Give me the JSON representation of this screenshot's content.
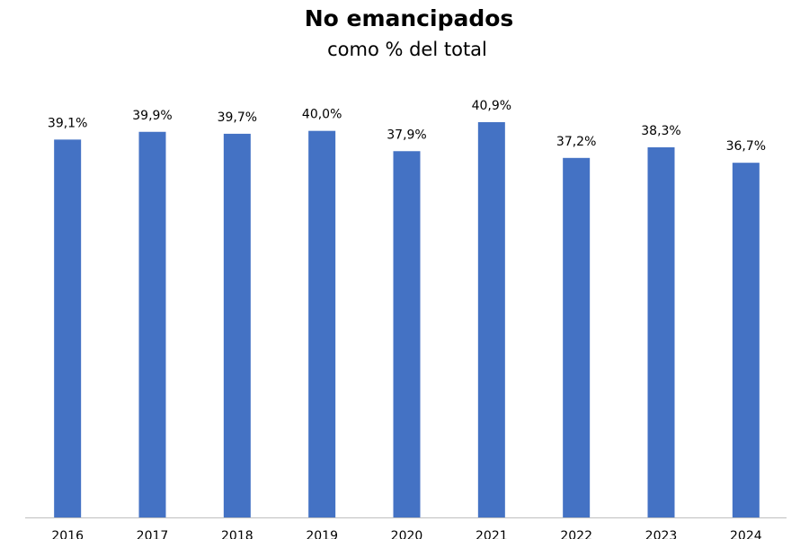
{
  "chart_data": {
    "type": "bar",
    "title": "No emancipados",
    "subtitle": "como % del total",
    "categories": [
      "2016",
      "2017",
      "2018",
      "2019",
      "2020",
      "2021",
      "2022",
      "2023",
      "2024"
    ],
    "values": [
      39.1,
      39.9,
      39.7,
      40.0,
      37.9,
      40.9,
      37.2,
      38.3,
      36.7
    ],
    "value_labels": [
      "39,1%",
      "39,9%",
      "39,7%",
      "40,0%",
      "37,9%",
      "40,9%",
      "37,2%",
      "38,3%",
      "36,7%"
    ],
    "color": "#4472c4"
  }
}
